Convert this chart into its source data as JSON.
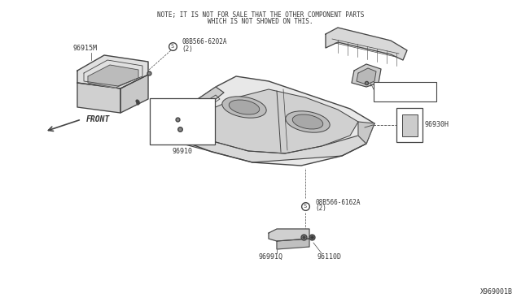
{
  "bg_color": "#ffffff",
  "line_color": "#444444",
  "text_color": "#333333",
  "note_line1": "NOTE; IT IS NOT FOR SALE THAT THE OTHER COMPONENT PARTS",
  "note_line2": "WHICH IS NOT SHOWED ON THIS.",
  "diagram_id": "X969001B",
  "fig_w": 6.4,
  "fig_h": 3.72,
  "dpi": 100
}
